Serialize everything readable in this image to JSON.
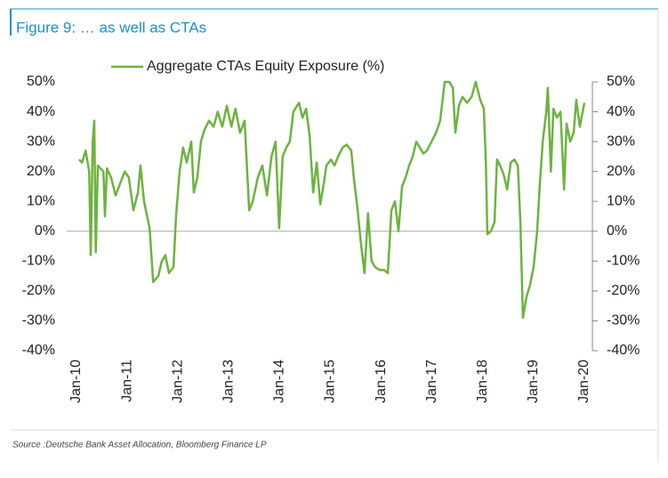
{
  "chart_data": {
    "type": "line",
    "title": "Figure 9: … as well as CTAs",
    "source": "Source :Deutsche Bank Asset Allocation, Bloomberg Finance LP",
    "legend": "top",
    "series": [
      {
        "name": "Aggregate CTAs Equity Exposure (%)",
        "color": "#6db33f",
        "x": [
          2010.05,
          2010.11,
          2010.18,
          2010.25,
          2010.28,
          2010.32,
          2010.35,
          2010.38,
          2010.42,
          2010.53,
          2010.56,
          2010.6,
          2010.68,
          2010.77,
          2010.95,
          2011.03,
          2011.12,
          2011.21,
          2011.26,
          2011.33,
          2011.44,
          2011.51,
          2011.61,
          2011.68,
          2011.75,
          2011.82,
          2011.91,
          2011.96,
          2012.03,
          2012.1,
          2012.17,
          2012.26,
          2012.31,
          2012.38,
          2012.45,
          2012.52,
          2012.61,
          2012.7,
          2012.78,
          2012.87,
          2012.96,
          2013.05,
          2013.13,
          2013.22,
          2013.31,
          2013.4,
          2013.47,
          2013.57,
          2013.66,
          2013.75,
          2013.84,
          2013.92,
          2013.99,
          2014.06,
          2014.13,
          2014.2,
          2014.27,
          2014.38,
          2014.45,
          2014.52,
          2014.59,
          2014.66,
          2014.73,
          2014.8,
          2014.87,
          2014.92,
          2015.01,
          2015.08,
          2015.15,
          2015.24,
          2015.32,
          2015.41,
          2015.46,
          2015.53,
          2015.6,
          2015.67,
          2015.74,
          2015.81,
          2015.88,
          2015.97,
          2016.06,
          2016.13,
          2016.2,
          2016.27,
          2016.34,
          2016.41,
          2016.48,
          2016.55,
          2016.62,
          2016.69,
          2016.76,
          2016.83,
          2016.9,
          2016.99,
          2017.08,
          2017.16,
          2017.25,
          2017.34,
          2017.41,
          2017.46,
          2017.53,
          2017.6,
          2017.69,
          2017.78,
          2017.86,
          2017.95,
          2018.02,
          2018.06,
          2018.09,
          2018.16,
          2018.23,
          2018.28,
          2018.34,
          2018.41,
          2018.48,
          2018.55,
          2018.62,
          2018.69,
          2018.74,
          2018.79,
          2018.86,
          2018.93,
          2019.0,
          2019.07,
          2019.12,
          2019.18,
          2019.25,
          2019.28,
          2019.34,
          2019.39,
          2019.46,
          2019.53,
          2019.6,
          2019.65,
          2019.72,
          2019.79,
          2019.84,
          2019.91,
          2020.0
        ],
        "values": [
          24,
          23,
          27,
          20,
          -8,
          30,
          37,
          -7,
          22,
          20,
          5,
          21,
          18,
          12,
          20,
          18,
          7,
          13,
          22,
          10,
          1,
          -17,
          -15,
          -10,
          -8,
          -14,
          -12,
          5,
          20,
          28,
          23,
          30,
          13,
          18,
          30,
          34,
          37,
          35,
          40,
          35,
          42,
          35,
          41,
          33,
          37,
          7,
          10,
          18,
          22,
          12,
          25,
          30,
          1,
          25,
          28,
          30,
          40,
          43,
          38,
          41,
          32,
          13,
          23,
          9,
          16,
          22,
          24,
          22,
          25,
          28,
          29,
          27,
          18,
          8,
          -4,
          -14,
          6,
          -10,
          -12,
          -13,
          -13,
          -14,
          7,
          10,
          0,
          15,
          18,
          22,
          25,
          30,
          28,
          26,
          27,
          30,
          33,
          37,
          50,
          50,
          48,
          33,
          42,
          45,
          43,
          45,
          50,
          44,
          41,
          23,
          -1,
          0,
          3,
          24,
          22,
          19,
          14,
          23,
          24,
          22,
          3,
          -29,
          -22,
          -18,
          -12,
          0,
          15,
          30,
          40,
          48,
          20,
          41,
          38,
          40,
          14,
          36,
          30,
          33,
          44,
          35,
          43
        ]
      }
    ],
    "xlim": [
      2010,
      2020
    ],
    "xticks": [
      {
        "value": 2010,
        "label": "Jan-10"
      },
      {
        "value": 2011,
        "label": "Jan-11"
      },
      {
        "value": 2012,
        "label": "Jan-12"
      },
      {
        "value": 2013,
        "label": "Jan-13"
      },
      {
        "value": 2014,
        "label": "Jan-14"
      },
      {
        "value": 2015,
        "label": "Jan-15"
      },
      {
        "value": 2016,
        "label": "Jan-16"
      },
      {
        "value": 2017,
        "label": "Jan-17"
      },
      {
        "value": 2018,
        "label": "Jan-18"
      },
      {
        "value": 2019,
        "label": "Jan-19"
      },
      {
        "value": 2020,
        "label": "Jan-20"
      }
    ],
    "ylim": [
      -40,
      50
    ],
    "yticks": [
      {
        "value": -40,
        "label": "-40%"
      },
      {
        "value": -30,
        "label": "-30%"
      },
      {
        "value": -20,
        "label": "-20%"
      },
      {
        "value": -10,
        "label": "-10%"
      },
      {
        "value": 0,
        "label": "0%"
      },
      {
        "value": 10,
        "label": "10%"
      },
      {
        "value": 20,
        "label": "20%"
      },
      {
        "value": 30,
        "label": "30%"
      },
      {
        "value": 40,
        "label": "40%"
      },
      {
        "value": 50,
        "label": "50%"
      }
    ],
    "y2lim": [
      -40,
      50
    ],
    "y2ticks": [
      {
        "value": -40,
        "label": "-40%"
      },
      {
        "value": -30,
        "label": "-30%"
      },
      {
        "value": -20,
        "label": "-20%"
      },
      {
        "value": -10,
        "label": "-10%"
      },
      {
        "value": 0,
        "label": "0%"
      },
      {
        "value": 10,
        "label": "10%"
      },
      {
        "value": 20,
        "label": "20%"
      },
      {
        "value": 30,
        "label": "30%"
      },
      {
        "value": 40,
        "label": "40%"
      },
      {
        "value": 50,
        "label": "50%"
      }
    ]
  }
}
